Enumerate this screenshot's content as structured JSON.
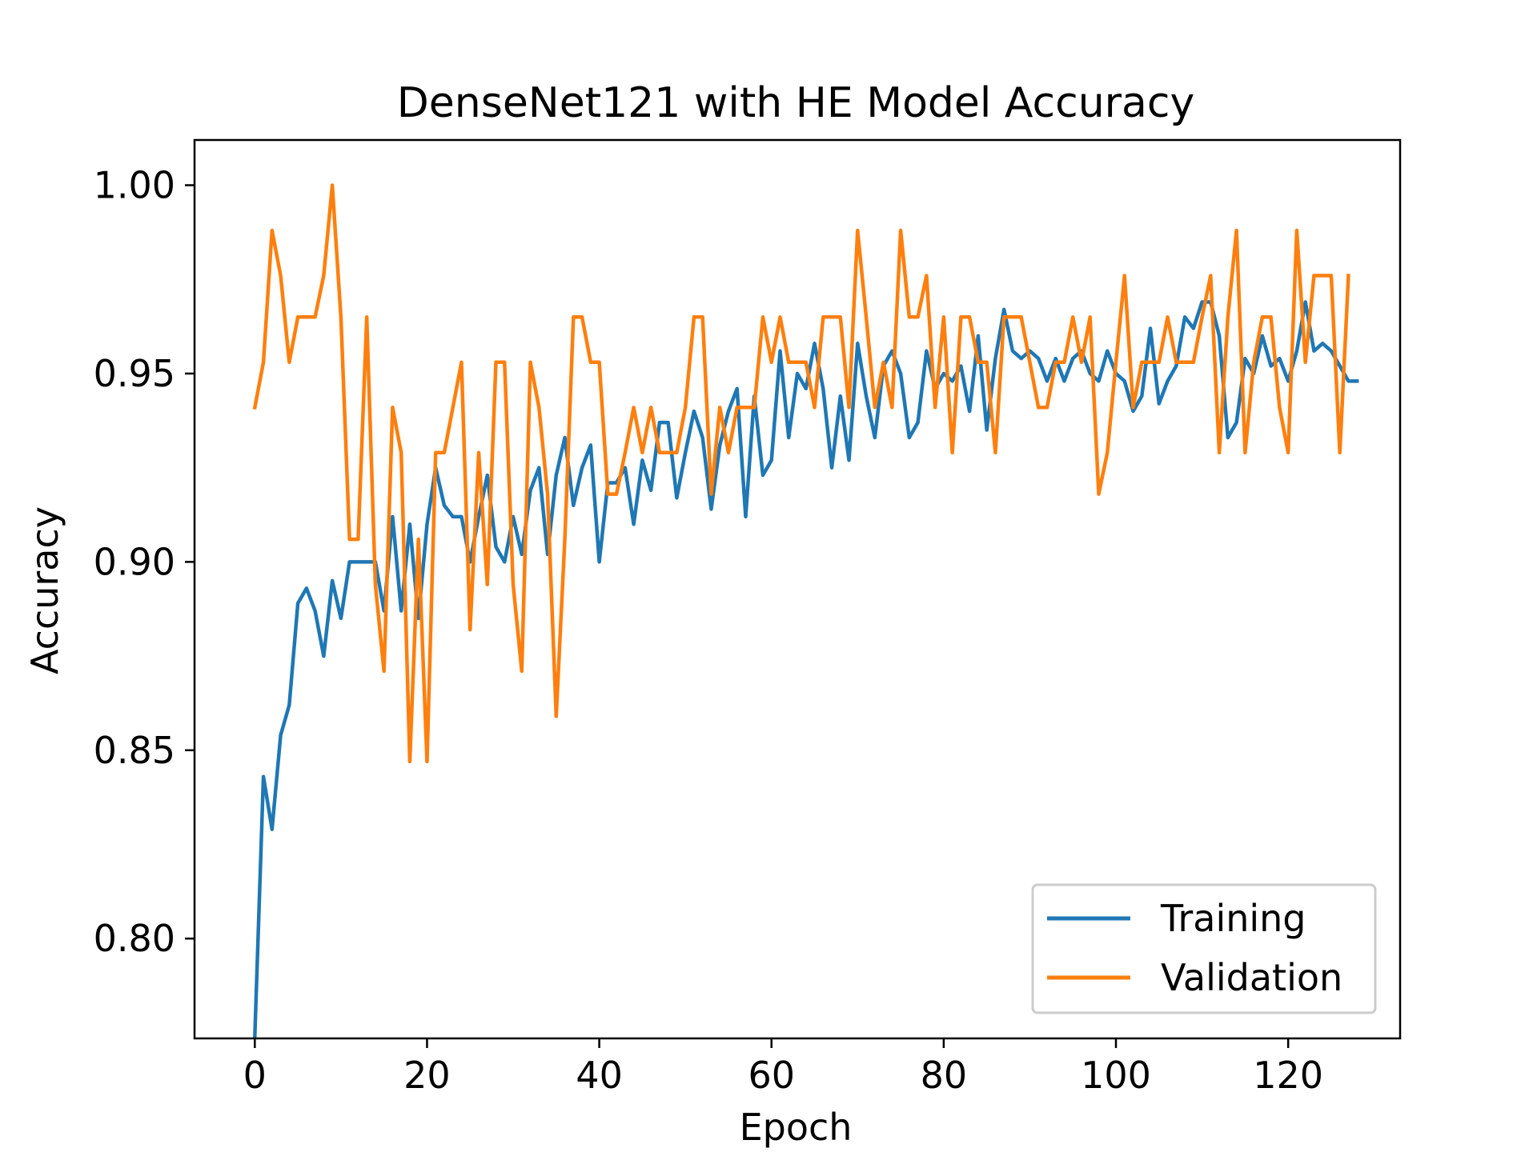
{
  "chart_data": {
    "type": "line",
    "title": "DenseNet121 with HE Model Accuracy",
    "xlabel": "Epoch",
    "ylabel": "Accuracy",
    "xlim": [
      -7,
      133
    ],
    "ylim": [
      0.7735,
      1.012
    ],
    "xticks": [
      0,
      20,
      40,
      60,
      80,
      100,
      120
    ],
    "xtick_labels": [
      "0",
      "20",
      "40",
      "60",
      "80",
      "100",
      "120"
    ],
    "yticks": [
      0.8,
      0.85,
      0.9,
      0.95,
      1.0
    ],
    "ytick_labels": [
      "0.80",
      "0.85",
      "0.90",
      "0.95",
      "1.00"
    ],
    "grid": false,
    "legend_position": "bottom-right",
    "series": [
      {
        "name": "Training",
        "color": "#1f77b4",
        "values": [
          0.774,
          0.843,
          0.829,
          0.854,
          0.862,
          0.889,
          0.893,
          0.887,
          0.875,
          0.895,
          0.885,
          0.9,
          0.9,
          0.9,
          0.9,
          0.887,
          0.912,
          0.887,
          0.91,
          0.885,
          0.91,
          0.925,
          0.915,
          0.912,
          0.912,
          0.9,
          0.912,
          0.923,
          0.904,
          0.9,
          0.912,
          0.902,
          0.919,
          0.925,
          0.902,
          0.923,
          0.933,
          0.915,
          0.925,
          0.931,
          0.9,
          0.921,
          0.921,
          0.925,
          0.91,
          0.927,
          0.919,
          0.937,
          0.937,
          0.917,
          0.929,
          0.94,
          0.933,
          0.914,
          0.931,
          0.94,
          0.946,
          0.912,
          0.944,
          0.923,
          0.927,
          0.956,
          0.933,
          0.95,
          0.946,
          0.958,
          0.946,
          0.925,
          0.944,
          0.927,
          0.958,
          0.944,
          0.933,
          0.952,
          0.956,
          0.95,
          0.933,
          0.937,
          0.956,
          0.946,
          0.95,
          0.948,
          0.952,
          0.94,
          0.96,
          0.935,
          0.954,
          0.967,
          0.956,
          0.954,
          0.956,
          0.954,
          0.948,
          0.954,
          0.948,
          0.954,
          0.956,
          0.95,
          0.948,
          0.956,
          0.95,
          0.948,
          0.94,
          0.944,
          0.962,
          0.942,
          0.948,
          0.952,
          0.965,
          0.962,
          0.969,
          0.969,
          0.96,
          0.933,
          0.937,
          0.954,
          0.95,
          0.96,
          0.952,
          0.954,
          0.948,
          0.956,
          0.969,
          0.956,
          0.958,
          0.956,
          0.952,
          0.948,
          0.948
        ]
      },
      {
        "name": "Validation",
        "color": "#ff7f0e",
        "values": [
          0.941,
          0.953,
          0.988,
          0.976,
          0.953,
          0.965,
          0.965,
          0.965,
          0.976,
          1.0,
          0.965,
          0.906,
          0.906,
          0.965,
          0.894,
          0.871,
          0.941,
          0.929,
          0.847,
          0.906,
          0.847,
          0.929,
          0.929,
          0.941,
          0.953,
          0.882,
          0.929,
          0.894,
          0.953,
          0.953,
          0.894,
          0.871,
          0.953,
          0.941,
          0.918,
          0.859,
          0.906,
          0.965,
          0.965,
          0.953,
          0.953,
          0.918,
          0.918,
          0.929,
          0.941,
          0.929,
          0.941,
          0.929,
          0.929,
          0.929,
          0.941,
          0.965,
          0.965,
          0.918,
          0.941,
          0.929,
          0.941,
          0.941,
          0.941,
          0.965,
          0.953,
          0.965,
          0.953,
          0.953,
          0.953,
          0.941,
          0.965,
          0.965,
          0.965,
          0.941,
          0.988,
          0.965,
          0.941,
          0.953,
          0.941,
          0.988,
          0.965,
          0.965,
          0.976,
          0.941,
          0.965,
          0.929,
          0.965,
          0.965,
          0.953,
          0.953,
          0.929,
          0.965,
          0.965,
          0.965,
          0.953,
          0.941,
          0.941,
          0.953,
          0.953,
          0.965,
          0.953,
          0.965,
          0.918,
          0.929,
          0.953,
          0.976,
          0.941,
          0.953,
          0.953,
          0.953,
          0.965,
          0.953,
          0.953,
          0.953,
          0.965,
          0.976,
          0.929,
          0.965,
          0.988,
          0.929,
          0.953,
          0.965,
          0.965,
          0.941,
          0.929,
          0.988,
          0.953,
          0.976,
          0.976,
          0.976,
          0.929,
          0.976
        ]
      }
    ]
  }
}
